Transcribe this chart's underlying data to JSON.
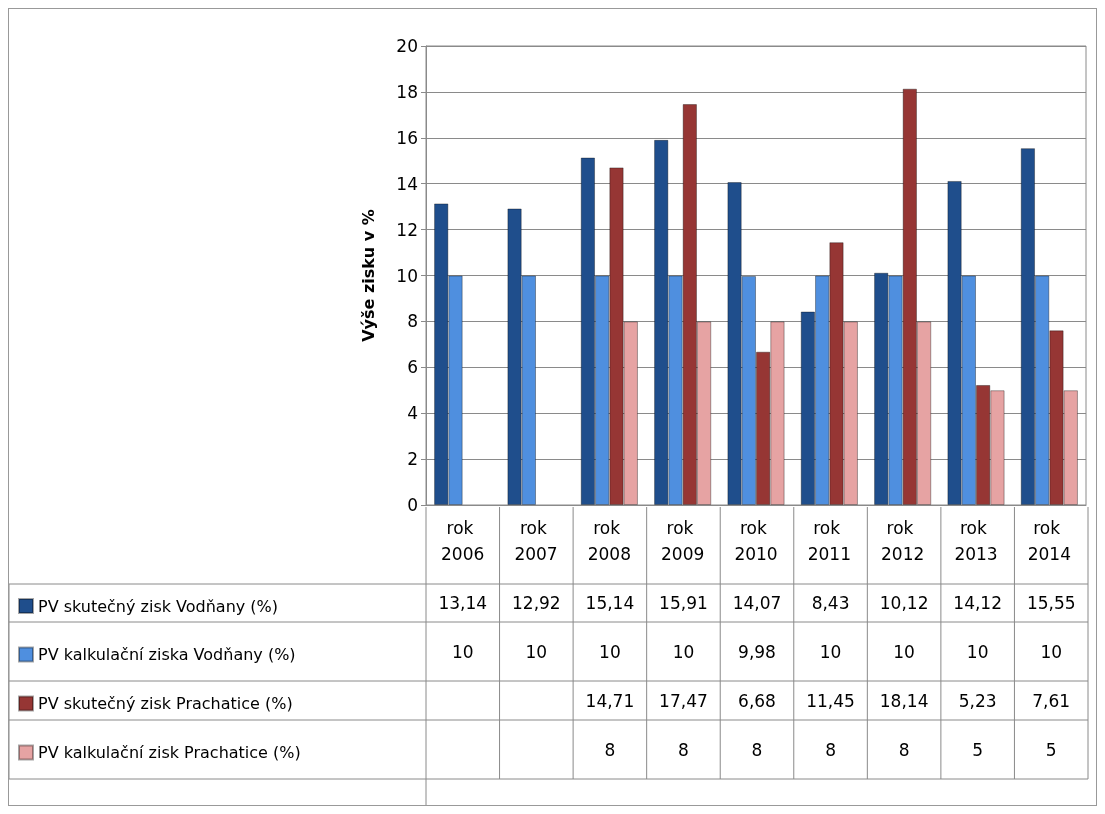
{
  "chart_data": {
    "type": "bar",
    "ylabel": "Výše zisku v %",
    "categories": [
      "rok 2006",
      "rok 2007",
      "rok 2008",
      "rok 2009",
      "rok 2010",
      "rok 2011",
      "rok 2012",
      "rok 2013",
      "rok 2014"
    ],
    "series": [
      {
        "name": "PV skutečný zisk Vodňany (%)",
        "color": "#1f4e8c",
        "values": [
          13.14,
          12.92,
          15.14,
          15.91,
          14.07,
          8.43,
          10.12,
          14.12,
          15.55
        ],
        "value_labels": [
          "13,14",
          "12,92",
          "15,14",
          "15,91",
          "14,07",
          "8,43",
          "10,12",
          "14,12",
          "15,55"
        ]
      },
      {
        "name": "PV kalkulační ziska Vodňany (%)",
        "color": "#4f8fdf",
        "values": [
          10,
          10,
          10,
          10,
          9.98,
          10,
          10,
          10,
          10
        ],
        "value_labels": [
          "10",
          "10",
          "10",
          "10",
          "9,98",
          "10",
          "10",
          "10",
          "10"
        ]
      },
      {
        "name": "PV skutečný zisk Prachatice (%)",
        "color": "#963634",
        "values": [
          null,
          null,
          14.71,
          17.47,
          6.68,
          11.45,
          18.14,
          5.23,
          7.61
        ],
        "value_labels": [
          null,
          null,
          "14,71",
          "17,47",
          "6,68",
          "11,45",
          "18,14",
          "5,23",
          "7,61"
        ]
      },
      {
        "name": "PV kalkulační zisk Prachatice (%)",
        "color": "#e6a3a3",
        "values": [
          null,
          null,
          8,
          8,
          8,
          8,
          8,
          5,
          5
        ],
        "value_labels": [
          null,
          null,
          "8",
          "8",
          "8",
          "8",
          "8",
          "5",
          "5"
        ]
      }
    ],
    "ylim": [
      0,
      20
    ],
    "yticks": [
      0,
      2,
      4,
      6,
      8,
      10,
      12,
      14,
      16,
      18,
      20
    ],
    "grid": "y",
    "legend": "bottom left"
  }
}
